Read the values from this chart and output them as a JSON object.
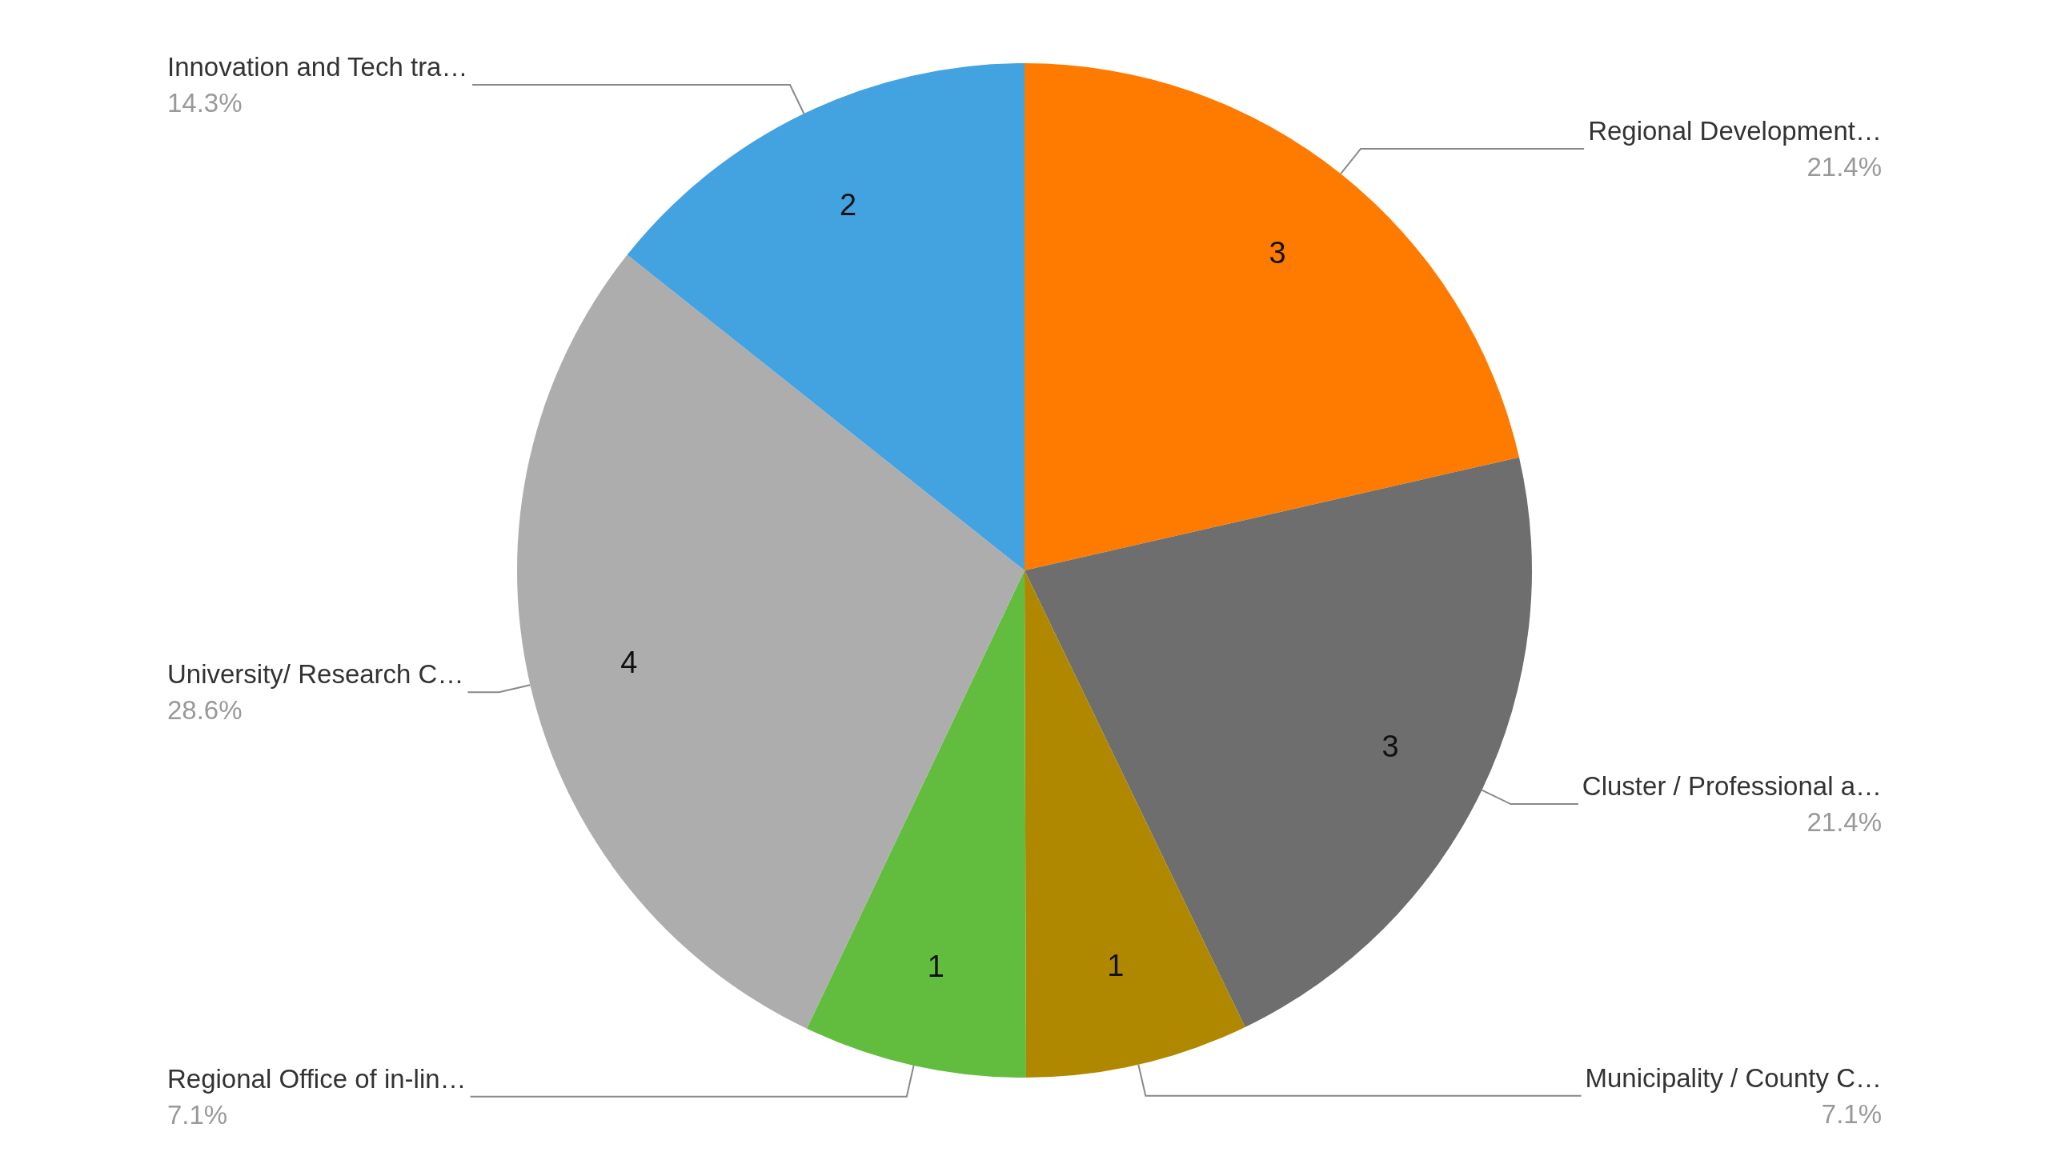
{
  "chart_data": {
    "type": "pie",
    "categories": [
      "Regional Development…",
      "Cluster / Professional a…",
      "Municipality / County C…",
      "Regional Office of in-lin…",
      "University/ Research C…",
      "Innovation and Tech tra…"
    ],
    "values": [
      21.4,
      21.4,
      7.1,
      7.1,
      28.6,
      14.3
    ],
    "colors": [
      "#ff7b00",
      "#6e6e6e",
      "#b08800",
      "#62bd3e",
      "#adadad",
      "#42a3e0"
    ],
    "value_labels": [
      "21.4%",
      "21.4%",
      "7.1%",
      "7.1%",
      "28.6%",
      "14.3%"
    ],
    "annotations": [
      "3",
      "3",
      "1",
      "1",
      "4",
      "2"
    ]
  }
}
